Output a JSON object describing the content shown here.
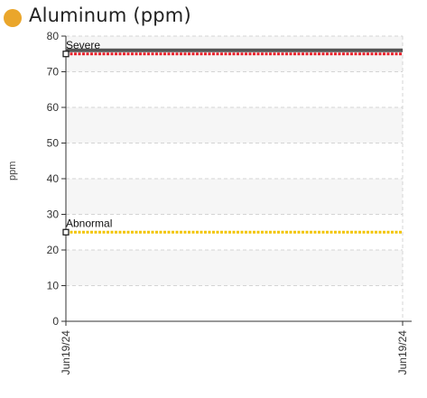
{
  "chart_data": {
    "type": "line",
    "title": "Aluminum (ppm)",
    "title_dot_color": "#eaa62b",
    "ylabel": "ppm",
    "ylim": [
      0,
      80
    ],
    "yticks": [
      0,
      10,
      20,
      30,
      40,
      50,
      60,
      70,
      80
    ],
    "x": [
      "Jun19/24",
      "Jun19/24"
    ],
    "grid": true,
    "thresholds": [
      {
        "label": "Severe",
        "value": 75,
        "color": "#e8202a"
      },
      {
        "label": "Abnormal",
        "value": 25,
        "color": "#f2c400"
      }
    ],
    "series": [
      {
        "values": [
          76,
          76
        ],
        "color": "#555555"
      }
    ]
  }
}
